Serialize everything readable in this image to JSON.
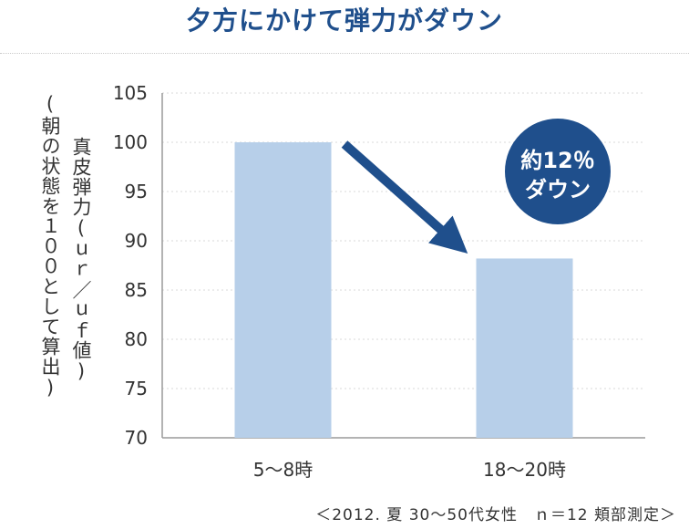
{
  "title": "夕方にかけて弾力がダウン",
  "ylabel_main": "真皮弾力(ｕｒ／ｕｆ値)",
  "ylabel_sub": "(朝の状態を１００として算出)",
  "callout": {
    "line1": "約12％",
    "line2": "ダウン",
    "color": "#1f4f8c"
  },
  "footnote": "＜2012. 夏 30～50代女性　ｎ＝12 頬部測定＞",
  "colors": {
    "bar": "#b7cfe9",
    "arrow": "#1f4f8c",
    "grid": "#d9d9d9",
    "axis": "#9a9a9a",
    "title": "#1f4f8c"
  },
  "chart_data": {
    "type": "bar",
    "categories": [
      "5～8時",
      "18～20時"
    ],
    "values": [
      100,
      88.2
    ],
    "ylim": [
      70,
      105
    ],
    "yticks": [
      70,
      75,
      80,
      85,
      90,
      95,
      100,
      105
    ],
    "grid": true,
    "annotations": [
      "約12％ダウン"
    ]
  }
}
